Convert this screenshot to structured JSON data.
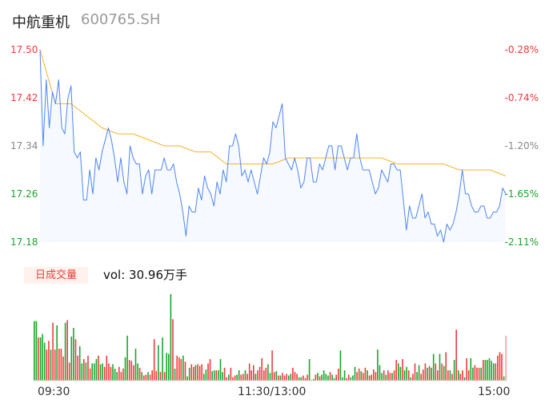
{
  "header": {
    "name": "中航重机",
    "code": "600765.SH"
  },
  "colors": {
    "price_line": "#4f86f7",
    "avg_line": "#f5b324",
    "up": "#f23b3b",
    "down": "#1aa52c",
    "area": "#f6f9ff"
  },
  "chart_data": [
    {
      "type": "line",
      "ylim": [
        17.18,
        17.5
      ],
      "y_ticks": [
        "17.50",
        "17.42",
        "17.34",
        "17.26",
        "17.18"
      ],
      "y_tick_colors": [
        "#f23b3b",
        "#f23b3b",
        "#888888",
        "#1aa52c",
        "#1aa52c"
      ],
      "y2_ticks": [
        "-0.28%",
        "-0.74%",
        "-1.20%",
        "-1.65%",
        "-2.11%"
      ],
      "y2_tick_colors": [
        "#f23b3b",
        "#f23b3b",
        "#888888",
        "#1aa52c",
        "#1aa52c"
      ],
      "x_ticks": [
        "09:30",
        "11:30/13:00",
        "15:00"
      ],
      "price": [
        17.5,
        17.34,
        17.45,
        17.37,
        17.43,
        17.41,
        17.45,
        17.37,
        17.36,
        17.42,
        17.44,
        17.33,
        17.32,
        17.33,
        17.25,
        17.25,
        17.3,
        17.26,
        17.32,
        17.3,
        17.33,
        17.35,
        17.37,
        17.35,
        17.32,
        17.28,
        17.32,
        17.28,
        17.26,
        17.34,
        17.32,
        17.31,
        17.31,
        17.26,
        17.29,
        17.3,
        17.26,
        17.3,
        17.3,
        17.3,
        17.32,
        17.3,
        17.3,
        17.31,
        17.28,
        17.26,
        17.23,
        17.19,
        17.24,
        17.23,
        17.23,
        17.27,
        17.25,
        17.29,
        17.27,
        17.26,
        17.24,
        17.28,
        17.26,
        17.3,
        17.28,
        17.34,
        17.34,
        17.36,
        17.34,
        17.29,
        17.3,
        17.28,
        17.3,
        17.28,
        17.26,
        17.29,
        17.32,
        17.31,
        17.33,
        17.38,
        17.37,
        17.39,
        17.41,
        17.32,
        17.31,
        17.3,
        17.32,
        17.3,
        17.27,
        17.28,
        17.32,
        17.32,
        17.28,
        17.28,
        17.31,
        17.3,
        17.32,
        17.34,
        17.34,
        17.3,
        17.34,
        17.34,
        17.32,
        17.3,
        17.32,
        17.32,
        17.36,
        17.32,
        17.3,
        17.3,
        17.3,
        17.28,
        17.26,
        17.27,
        17.3,
        17.29,
        17.28,
        17.31,
        17.31,
        17.3,
        17.3,
        17.25,
        17.2,
        17.24,
        17.22,
        17.22,
        17.24,
        17.26,
        17.22,
        17.23,
        17.21,
        17.21,
        17.19,
        17.2,
        17.18,
        17.21,
        17.2,
        17.21,
        17.23,
        17.26,
        17.3,
        17.26,
        17.26,
        17.24,
        17.23,
        17.23,
        17.24,
        17.24,
        17.22,
        17.22,
        17.23,
        17.23,
        17.24,
        17.27,
        17.26
      ],
      "avg": [
        17.5,
        17.41,
        17.41,
        17.39,
        17.37,
        17.36,
        17.36,
        17.35,
        17.34,
        17.34,
        17.33,
        17.33,
        17.31,
        17.31,
        17.31,
        17.31,
        17.32,
        17.32,
        17.32,
        17.32,
        17.32,
        17.32,
        17.32,
        17.31,
        17.31,
        17.31,
        17.31,
        17.3,
        17.3,
        17.3,
        17.29
      ]
    },
    {
      "type": "bar",
      "label": "日成交量",
      "vol_text": "vol: 30.96万手",
      "values": [
        69,
        69,
        50,
        50,
        54,
        44,
        36,
        46,
        36,
        67,
        36,
        64,
        37,
        37,
        28,
        67,
        70,
        21,
        51,
        61,
        48,
        29,
        40,
        20,
        25,
        21,
        29,
        14,
        20,
        20,
        25,
        29,
        19,
        20,
        16,
        29,
        20,
        16,
        19,
        14,
        10,
        16,
        10,
        14,
        27,
        52,
        24,
        23,
        18,
        37,
        20,
        15,
        10,
        6,
        7,
        10,
        7,
        12,
        48,
        11,
        41,
        10,
        50,
        10,
        32,
        31,
        100,
        71,
        14,
        29,
        27,
        25,
        29,
        22,
        5,
        15,
        19,
        16,
        18,
        19,
        17,
        19,
        8,
        13,
        20,
        25,
        11,
        12,
        12,
        12,
        25,
        10,
        15,
        4,
        7,
        15,
        4,
        6,
        7,
        12,
        7,
        8,
        12,
        8,
        20,
        12,
        18,
        8,
        12,
        16,
        26,
        12,
        15,
        19,
        9,
        35,
        10,
        11,
        6,
        6,
        9,
        6,
        8,
        6,
        8,
        15,
        10,
        8,
        4,
        4,
        6,
        3,
        7,
        25,
        1,
        2,
        7,
        9,
        5,
        7,
        12,
        8,
        6,
        10,
        7,
        3,
        7,
        14,
        35,
        4,
        12,
        3,
        7,
        4,
        6,
        16,
        10,
        14,
        11,
        9,
        15,
        12,
        6,
        7,
        13,
        10,
        36,
        18,
        9,
        12,
        7,
        12,
        9,
        9,
        12,
        24,
        20,
        16,
        25,
        12,
        16,
        12,
        4,
        8,
        20,
        10,
        18,
        8,
        13,
        20,
        15,
        17,
        15,
        31,
        20,
        12,
        31,
        20,
        17,
        33,
        12,
        12,
        8,
        24,
        59,
        12,
        8,
        12,
        4,
        26,
        12,
        26,
        15,
        18,
        15,
        15,
        15,
        24,
        24,
        24,
        26,
        23,
        20,
        20,
        29,
        33,
        31,
        5,
        52
      ],
      "colors": "ggrgggrrgrrgrrrgrrggrrggrgrrgggrggrrrrgggrrrggrrrggrgrrgrrrrgrgrgggrgrrrgrggrrgrrrggrrggrgggrrgrrrggrrgrrrrgrrrrrggrrgrgrrrggrrrggrrrgggrgrggggrggrrgggrrgggrrgrrgrrrrgggrgrrgrrggrggrgrrggrrrgrggrrgrgrrgrgrgrrgrrggrrrgrgggggrrrrgrrrgggrgrrrrggrrrgrrggrrgrrrgrrrrrrrrrrrrr"
    }
  ]
}
